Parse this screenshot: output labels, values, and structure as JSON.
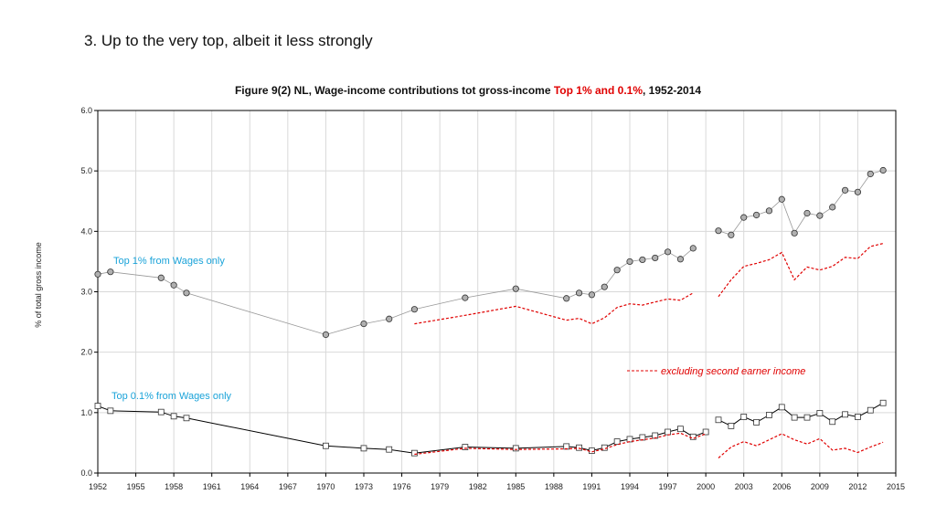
{
  "slide": {
    "heading": "3. Up to the very top, albeit it less strongly"
  },
  "figure": {
    "title_prefix": "Figure 9(2)  NL, Wage-income contributions tot gross-income ",
    "title_highlight": "Top 1% and 0.1%",
    "title_suffix": ", 1952-2014"
  },
  "colors": {
    "top1_marker": "#b0b0b0",
    "top01_marker": "#ffffff",
    "top1_line": "#999999",
    "top01_line": "#000000",
    "excl_line": "#e00000",
    "annotation_blue": "#1aa3d9",
    "grid": "#d9d9d9"
  },
  "chart_data": {
    "type": "line",
    "title": "Figure 9(2)  NL, Wage-income contributions tot gross-income Top 1% and 0.1%, 1952-2014",
    "xlabel": "",
    "ylabel": "% of total gross income",
    "xlim": [
      1952,
      2015
    ],
    "ylim": [
      0,
      6
    ],
    "grid": true,
    "x_ticks": [
      1952,
      1955,
      1958,
      1961,
      1964,
      1967,
      1970,
      1973,
      1976,
      1979,
      1982,
      1985,
      1988,
      1991,
      1994,
      1997,
      2000,
      2003,
      2006,
      2009,
      2012,
      2015
    ],
    "y_ticks": [
      0,
      1,
      2,
      3,
      4,
      5,
      6
    ],
    "y_tick_labels": [
      "0.0",
      "1.0",
      "2.0",
      "3.0",
      "4.0",
      "5.0",
      "6.0"
    ],
    "annotations": {
      "top1": "Top 1% from Wages only",
      "top01": "Top 0.1% from Wages only",
      "excl": "excluding second earner income"
    },
    "series": [
      {
        "name": "Top 1% from Wages only",
        "style": "circle-grey",
        "segments": [
          [
            [
              1952,
              3.29
            ],
            [
              1953,
              3.33
            ],
            [
              1957,
              3.23
            ],
            [
              1958,
              3.11
            ],
            [
              1959,
              2.98
            ],
            [
              1970,
              2.29
            ],
            [
              1973,
              2.47
            ],
            [
              1975,
              2.55
            ],
            [
              1977,
              2.71
            ],
            [
              1981,
              2.9
            ],
            [
              1985,
              3.05
            ],
            [
              1989,
              2.89
            ],
            [
              1990,
              2.98
            ],
            [
              1991,
              2.95
            ],
            [
              1992,
              3.08
            ],
            [
              1993,
              3.36
            ],
            [
              1994,
              3.5
            ],
            [
              1995,
              3.53
            ],
            [
              1996,
              3.56
            ],
            [
              1997,
              3.66
            ],
            [
              1998,
              3.54
            ],
            [
              1999,
              3.72
            ]
          ],
          [
            [
              2001,
              4.01
            ],
            [
              2002,
              3.94
            ],
            [
              2003,
              4.23
            ],
            [
              2004,
              4.27
            ],
            [
              2005,
              4.34
            ],
            [
              2006,
              4.53
            ],
            [
              2007,
              3.97
            ],
            [
              2008,
              4.3
            ],
            [
              2009,
              4.26
            ],
            [
              2010,
              4.4
            ],
            [
              2011,
              4.68
            ],
            [
              2012,
              4.65
            ],
            [
              2013,
              4.95
            ],
            [
              2014,
              5.01
            ]
          ]
        ]
      },
      {
        "name": "Top 0.1% from Wages only",
        "style": "square-black",
        "segments": [
          [
            [
              1952,
              1.11
            ],
            [
              1953,
              1.03
            ],
            [
              1957,
              1.01
            ],
            [
              1958,
              0.94
            ],
            [
              1959,
              0.91
            ],
            [
              1970,
              0.45
            ],
            [
              1973,
              0.41
            ],
            [
              1975,
              0.39
            ],
            [
              1977,
              0.33
            ],
            [
              1981,
              0.43
            ],
            [
              1985,
              0.41
            ],
            [
              1989,
              0.44
            ],
            [
              1990,
              0.42
            ],
            [
              1991,
              0.37
            ],
            [
              1992,
              0.42
            ],
            [
              1993,
              0.52
            ],
            [
              1994,
              0.56
            ],
            [
              1995,
              0.59
            ],
            [
              1996,
              0.62
            ],
            [
              1997,
              0.68
            ],
            [
              1998,
              0.73
            ],
            [
              1999,
              0.6
            ],
            [
              2000,
              0.68
            ]
          ],
          [
            [
              2001,
              0.88
            ],
            [
              2002,
              0.78
            ],
            [
              2003,
              0.93
            ],
            [
              2004,
              0.84
            ],
            [
              2005,
              0.96
            ],
            [
              2006,
              1.09
            ],
            [
              2007,
              0.92
            ],
            [
              2008,
              0.92
            ],
            [
              2009,
              0.99
            ],
            [
              2010,
              0.85
            ],
            [
              2011,
              0.97
            ],
            [
              2012,
              0.93
            ],
            [
              2013,
              1.04
            ],
            [
              2014,
              1.16
            ]
          ]
        ]
      },
      {
        "name": "Top 1% excluding second earner income",
        "style": "dashed-red",
        "segments": [
          [
            [
              1977,
              2.47
            ],
            [
              1981,
              2.61
            ],
            [
              1985,
              2.76
            ],
            [
              1989,
              2.53
            ],
            [
              1990,
              2.56
            ],
            [
              1991,
              2.47
            ],
            [
              1992,
              2.57
            ],
            [
              1993,
              2.74
            ],
            [
              1994,
              2.8
            ],
            [
              1995,
              2.78
            ],
            [
              1996,
              2.83
            ],
            [
              1997,
              2.88
            ],
            [
              1998,
              2.86
            ],
            [
              1999,
              2.98
            ]
          ],
          [
            [
              2001,
              2.92
            ],
            [
              2002,
              3.2
            ],
            [
              2003,
              3.42
            ],
            [
              2004,
              3.47
            ],
            [
              2005,
              3.53
            ],
            [
              2006,
              3.65
            ],
            [
              2007,
              3.2
            ],
            [
              2008,
              3.41
            ],
            [
              2009,
              3.36
            ],
            [
              2010,
              3.42
            ],
            [
              2011,
              3.57
            ],
            [
              2012,
              3.55
            ],
            [
              2013,
              3.75
            ],
            [
              2014,
              3.8
            ]
          ]
        ]
      },
      {
        "name": "Top 0.1% excluding second earner income",
        "style": "dashed-red",
        "segments": [
          [
            [
              1977,
              0.31
            ],
            [
              1981,
              0.41
            ],
            [
              1985,
              0.39
            ],
            [
              1989,
              0.4
            ],
            [
              1990,
              0.41
            ],
            [
              1991,
              0.35
            ],
            [
              1992,
              0.4
            ],
            [
              1993,
              0.47
            ],
            [
              1994,
              0.52
            ],
            [
              1995,
              0.55
            ],
            [
              1996,
              0.58
            ],
            [
              1997,
              0.63
            ],
            [
              1998,
              0.66
            ],
            [
              1999,
              0.57
            ],
            [
              2000,
              0.65
            ]
          ],
          [
            [
              2001,
              0.25
            ],
            [
              2002,
              0.43
            ],
            [
              2003,
              0.52
            ],
            [
              2004,
              0.45
            ],
            [
              2005,
              0.55
            ],
            [
              2006,
              0.65
            ],
            [
              2007,
              0.55
            ],
            [
              2008,
              0.48
            ],
            [
              2009,
              0.57
            ],
            [
              2010,
              0.38
            ],
            [
              2011,
              0.41
            ],
            [
              2012,
              0.34
            ],
            [
              2013,
              0.43
            ],
            [
              2014,
              0.51
            ]
          ]
        ]
      }
    ]
  }
}
